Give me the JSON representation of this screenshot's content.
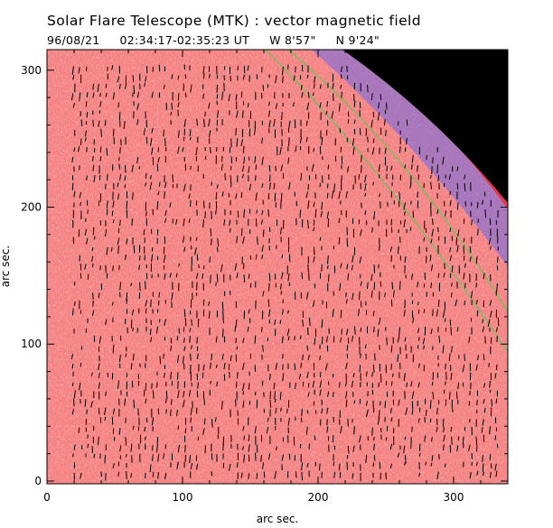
{
  "header": {
    "title": "Solar Flare Telescope (MTK) : vector magnetic field",
    "date": "96/08/21",
    "time_range": "02:34:17-02:35:23 UT",
    "coord_w": "W 8'57\"",
    "coord_n": "N 9'24\""
  },
  "axes": {
    "xlabel": "arc sec.",
    "ylabel": "arc sec.",
    "xticks": [
      "0",
      "100",
      "200",
      "300"
    ],
    "yticks": [
      "0",
      "100",
      "200",
      "300"
    ],
    "xlim": [
      0,
      340
    ],
    "ylim": [
      -2,
      315
    ]
  },
  "colors": {
    "field": "#f58080",
    "field_light": "#fbd0d0",
    "limb_blue": "#6a6ae8",
    "limb_green": "#6cc25a",
    "limb_red": "#ff2020",
    "space": "#000000",
    "vector": "#000000"
  },
  "limb": {
    "corner_x": 218,
    "corner_y": 315,
    "right_x": 340,
    "right_y": 203
  }
}
